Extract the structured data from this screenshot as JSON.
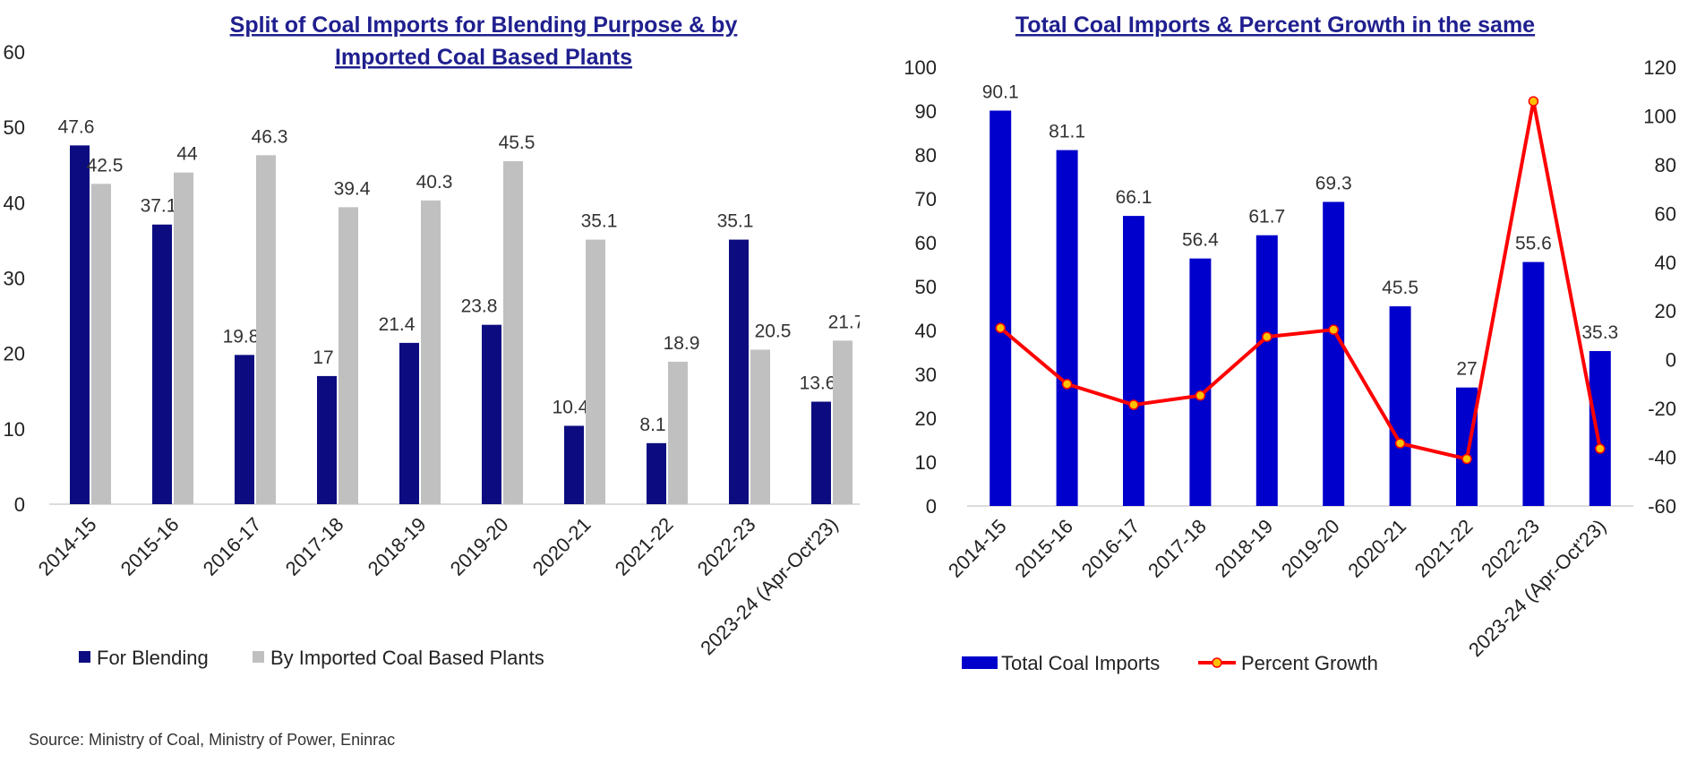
{
  "source": "Source: Ministry of Coal, Ministry of Power, Eninrac",
  "colors": {
    "blending": "#0c0c80",
    "plants": "#c0c0c0",
    "total": "#0000cc",
    "growth_line": "#ff0000",
    "growth_marker": "#ffc000",
    "title": "#1f1f8f"
  },
  "chart_data": [
    {
      "type": "bar",
      "title_lines": [
        "Split of Coal Imports for Blending Purpose & by",
        "Imported Coal Based Plants"
      ],
      "categories": [
        "2014-15",
        "2015-16",
        "2016-17",
        "2017-18",
        "2018-19",
        "2019-20",
        "2020-21",
        "2021-22",
        "2022-23",
        "2023-24 (Apr-Oct'23)"
      ],
      "series": [
        {
          "name": "For Blending",
          "values": [
            47.6,
            37.1,
            19.8,
            17,
            21.4,
            23.8,
            10.4,
            8.1,
            35.1,
            13.6
          ]
        },
        {
          "name": "By Imported Coal Based Plants",
          "values": [
            42.5,
            44,
            46.3,
            39.4,
            40.3,
            45.5,
            35.1,
            18.9,
            20.5,
            21.7
          ]
        }
      ],
      "ylim": [
        0,
        60
      ],
      "yticks": [
        0,
        10,
        20,
        30,
        40,
        50,
        60
      ],
      "grid": false,
      "legend": "bottom"
    },
    {
      "type": "bar",
      "title": "Total Coal Imports & Percent Growth in the same",
      "categories": [
        "2014-15",
        "2015-16",
        "2016-17",
        "2017-18",
        "2018-19",
        "2019-20",
        "2020-21",
        "2021-22",
        "2022-23",
        "2023-24 (Apr-Oct'23)"
      ],
      "series": [
        {
          "name": "Total Coal Imports",
          "type": "bar",
          "axis": "left",
          "values": [
            90.1,
            81.1,
            66.1,
            56.4,
            61.7,
            69.3,
            45.5,
            27,
            55.6,
            35.3
          ]
        },
        {
          "name": "Percent Growth",
          "type": "line",
          "axis": "right",
          "values": [
            13.0,
            -10.0,
            -18.5,
            -14.7,
            9.4,
            12.3,
            -34.3,
            -40.7,
            106.0,
            -36.5
          ]
        }
      ],
      "ylim": [
        0,
        100
      ],
      "yticks": [
        0,
        10,
        20,
        30,
        40,
        50,
        60,
        70,
        80,
        90,
        100
      ],
      "y2lim": [
        -60,
        120
      ],
      "y2ticks": [
        -60,
        -40,
        -20,
        0,
        20,
        40,
        60,
        80,
        100,
        120
      ],
      "grid": false,
      "legend": "bottom"
    }
  ]
}
